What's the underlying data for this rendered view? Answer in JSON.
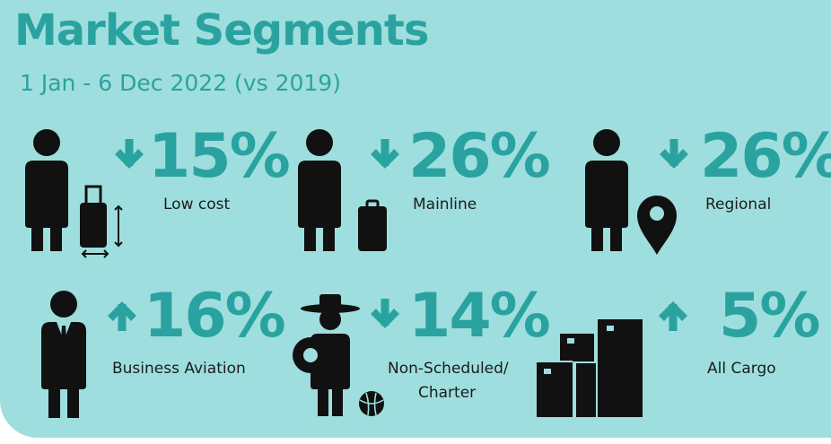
{
  "header": {
    "title": "Market Segments",
    "subtitle": "1 Jan - 6 Dec 2022 (vs 2019)"
  },
  "colors": {
    "background": "#9fdede",
    "accent": "#2aa3a0",
    "icon": "#111111"
  },
  "segments": [
    {
      "label": "Low cost",
      "change": "15%",
      "direction": "down",
      "icon": "traveler-with-rolling-suitcase-icon"
    },
    {
      "label": "Mainline",
      "change": "26%",
      "direction": "down",
      "icon": "traveler-with-suitcase-icon"
    },
    {
      "label": "Regional",
      "change": "26%",
      "direction": "down",
      "icon": "traveler-with-location-pin-icon"
    },
    {
      "label": "Business Aviation",
      "change": "16%",
      "direction": "up",
      "icon": "businessman-icon"
    },
    {
      "label_line1": "Non-Scheduled/",
      "label_line2": "Charter",
      "change": "14%",
      "direction": "down",
      "icon": "tourist-with-hat-and-swim-ring-icon"
    },
    {
      "label": "All Cargo",
      "change": "5%",
      "direction": "up",
      "icon": "cargo-boxes-icon"
    }
  ]
}
